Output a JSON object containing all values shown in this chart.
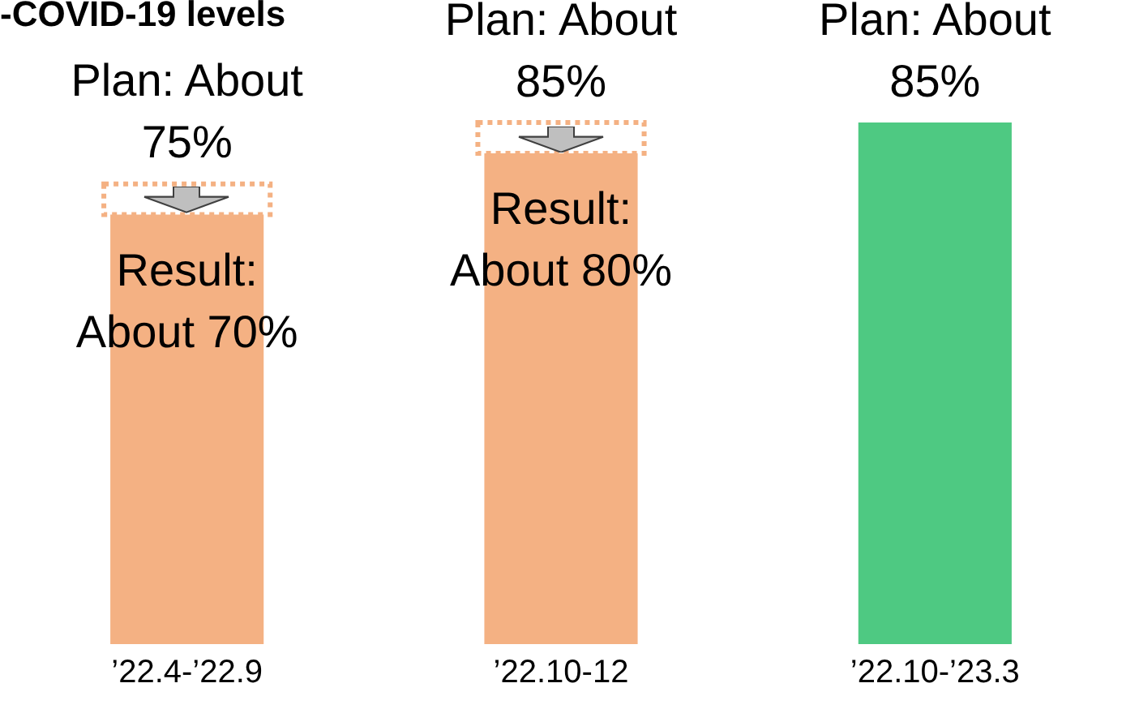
{
  "chart_data": {
    "type": "bar",
    "title": "-COVID-19 levels",
    "stacked": true,
    "categories": [
      "’22.4-’22.9",
      "’22.10-12",
      "’22.10-’23.3"
    ],
    "series": [
      {
        "values": [
          70,
          80,
          null
        ],
        "colors": [
          "#f4b183",
          "#f4b183",
          "#f4b183"
        ],
        "value_labels": [
          "Result: About 70%",
          "Result: About 80%",
          null
        ]
      },
      {
        "values": [
          5,
          5,
          85
        ],
        "colors": [
          "#f4b183",
          "#f4b183",
          "#4ec982"
        ],
        "value_labels": [
          "Plan: About 75%",
          "Plan: About 85%",
          "Plan: About 85%"
        ]
      }
    ],
    "legend": false,
    "grid": false
  }
}
